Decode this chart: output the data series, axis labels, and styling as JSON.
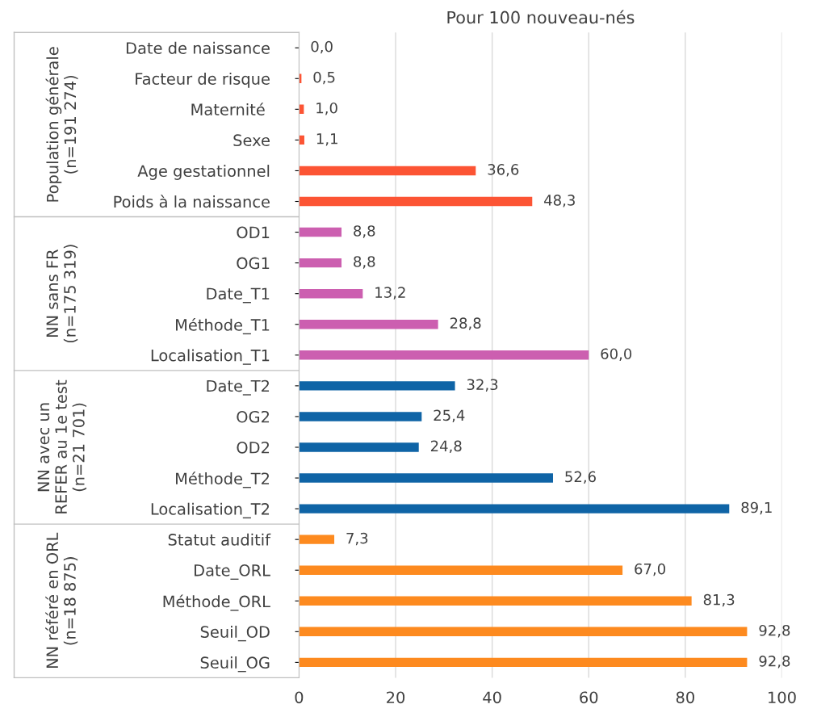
{
  "chart_data": {
    "type": "bar",
    "orientation": "horizontal",
    "title": "Pour 100 nouveau-nés",
    "categories": [
      "Date de naissance",
      "Facteur de risque",
      "Maternité ",
      "Sexe",
      "Age gestationnel",
      "Poids à la naissance",
      "OD1",
      "OG1",
      "Date_T1",
      "Méthode_T1",
      "Localisation_T1",
      "Date_T2",
      "OG2",
      "OD2",
      "Méthode_T2",
      "Localisation_T2",
      "Statut auditif",
      "Date_ORL",
      "Méthode_ORL",
      "Seuil_OD",
      "Seuil_OG"
    ],
    "values": [
      0.0,
      0.5,
      1.0,
      1.1,
      36.6,
      48.3,
      8.8,
      8.8,
      13.2,
      28.8,
      60.0,
      32.3,
      25.4,
      24.8,
      52.6,
      89.1,
      7.3,
      67.0,
      81.3,
      92.8,
      92.8
    ],
    "value_labels": [
      "0,0",
      "0,5",
      "1,0",
      "1,1",
      "36,6",
      "48,3",
      "8,8",
      "8,8",
      "13,2",
      "28,8",
      "60,0",
      "32,3",
      "25,4",
      "24,8",
      "52,6",
      "89,1",
      "7,3",
      "67,0",
      "81,3",
      "92,8",
      "92,8"
    ],
    "colors": [
      "#fc5434",
      "#fc5434",
      "#fc5434",
      "#fc5434",
      "#fc5434",
      "#fc5434",
      "#cc5fb0",
      "#cc5fb0",
      "#cc5fb0",
      "#cc5fb0",
      "#cc5fb0",
      "#0f64a6",
      "#0f64a6",
      "#0f64a6",
      "#0f64a6",
      "#0f64a6",
      "#fd8a1f",
      "#fd8a1f",
      "#fd8a1f",
      "#fd8a1f",
      "#fd8a1f"
    ],
    "annotations": [
      "Population générale\n(n=191 274)",
      "NN sans FR\n(n=175 319)",
      "NN avec un\nREFER au 1e test\n(n=21 701)",
      "NN référé en ORL\n(n=18 875)"
    ],
    "xlim": [
      0,
      100
    ],
    "xticks": [
      0,
      20,
      40,
      60,
      80,
      100
    ],
    "grid": "x"
  }
}
